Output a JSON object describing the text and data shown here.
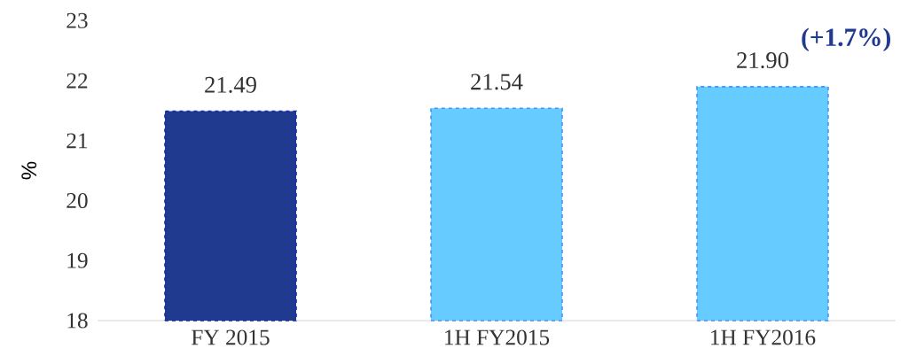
{
  "chart_data": {
    "type": "bar",
    "ylabel": "%",
    "categories": [
      "FY 2015",
      "1H FY2015",
      "1H FY2016"
    ],
    "values": [
      21.49,
      21.54,
      21.9
    ],
    "colors": [
      "#203a8f",
      "#66ccff",
      "#66ccff"
    ],
    "value_labels": [
      "21.49",
      "21.54",
      "21.90"
    ],
    "annotations": [
      "(+1.7%)"
    ],
    "ylim": [
      18,
      23
    ],
    "yticks": [
      18,
      19,
      20,
      21,
      22,
      23
    ],
    "grid": false,
    "line_style": "dashed"
  }
}
